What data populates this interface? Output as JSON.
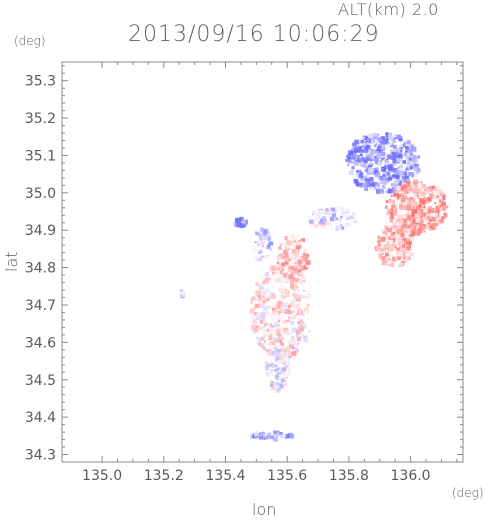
{
  "chart_data": {
    "type": "heatmap",
    "header": "ALT(km) 2.0",
    "title": "2013/09/16 10:06:29",
    "xlabel": "lon",
    "ylabel": "lat",
    "x_unit": "(deg)",
    "y_unit": "(deg)",
    "xlim": [
      134.87,
      136.17
    ],
    "ylim": [
      34.28,
      35.35
    ],
    "x_ticks": [
      135.0,
      135.2,
      135.4,
      135.6,
      135.8,
      136.0
    ],
    "x_tick_labels": [
      "135.0",
      "135.2",
      "135.4",
      "135.6",
      "135.8",
      "136.0"
    ],
    "y_ticks": [
      34.3,
      34.4,
      34.5,
      34.6,
      34.7,
      34.8,
      34.9,
      35.0,
      35.1,
      35.2,
      35.3
    ],
    "y_tick_labels": [
      "34.3",
      "34.4",
      "34.5",
      "34.6",
      "34.7",
      "34.8",
      "34.9",
      "35.0",
      "35.1",
      "35.2",
      "35.3"
    ],
    "grid": false,
    "colors": {
      "positive": "#f07878",
      "negative": "#7878f0",
      "axis": "#8a8a8a"
    },
    "clusters": [
      {
        "lon": 135.91,
        "lat": 35.08,
        "rlon": 0.12,
        "rlat": 0.08,
        "value": -0.7,
        "n": 420
      },
      {
        "lon": 136.02,
        "lat": 34.96,
        "rlon": 0.1,
        "rlat": 0.07,
        "value": 0.6,
        "n": 360
      },
      {
        "lon": 135.95,
        "lat": 34.86,
        "rlon": 0.06,
        "rlat": 0.06,
        "value": 0.5,
        "n": 180
      },
      {
        "lon": 135.58,
        "lat": 34.68,
        "rlon": 0.1,
        "rlat": 0.13,
        "value": 0.2,
        "n": 420
      },
      {
        "lon": 135.62,
        "lat": 34.82,
        "rlon": 0.05,
        "rlat": 0.07,
        "value": 0.4,
        "n": 160
      },
      {
        "lon": 135.57,
        "lat": 34.53,
        "rlon": 0.04,
        "rlat": 0.06,
        "value": -0.1,
        "n": 120
      },
      {
        "lon": 135.52,
        "lat": 34.86,
        "rlon": 0.03,
        "rlat": 0.05,
        "value": -0.3,
        "n": 60
      },
      {
        "lon": 135.75,
        "lat": 34.93,
        "rlon": 0.08,
        "rlat": 0.03,
        "value": -0.2,
        "n": 90
      },
      {
        "lon": 135.45,
        "lat": 34.92,
        "rlon": 0.02,
        "rlat": 0.01,
        "value": -0.8,
        "n": 30
      },
      {
        "lon": 135.55,
        "lat": 34.35,
        "rlon": 0.07,
        "rlat": 0.01,
        "value": -0.5,
        "n": 60
      },
      {
        "lon": 135.26,
        "lat": 34.73,
        "rlon": 0.01,
        "rlat": 0.01,
        "value": -0.3,
        "n": 8
      }
    ]
  }
}
